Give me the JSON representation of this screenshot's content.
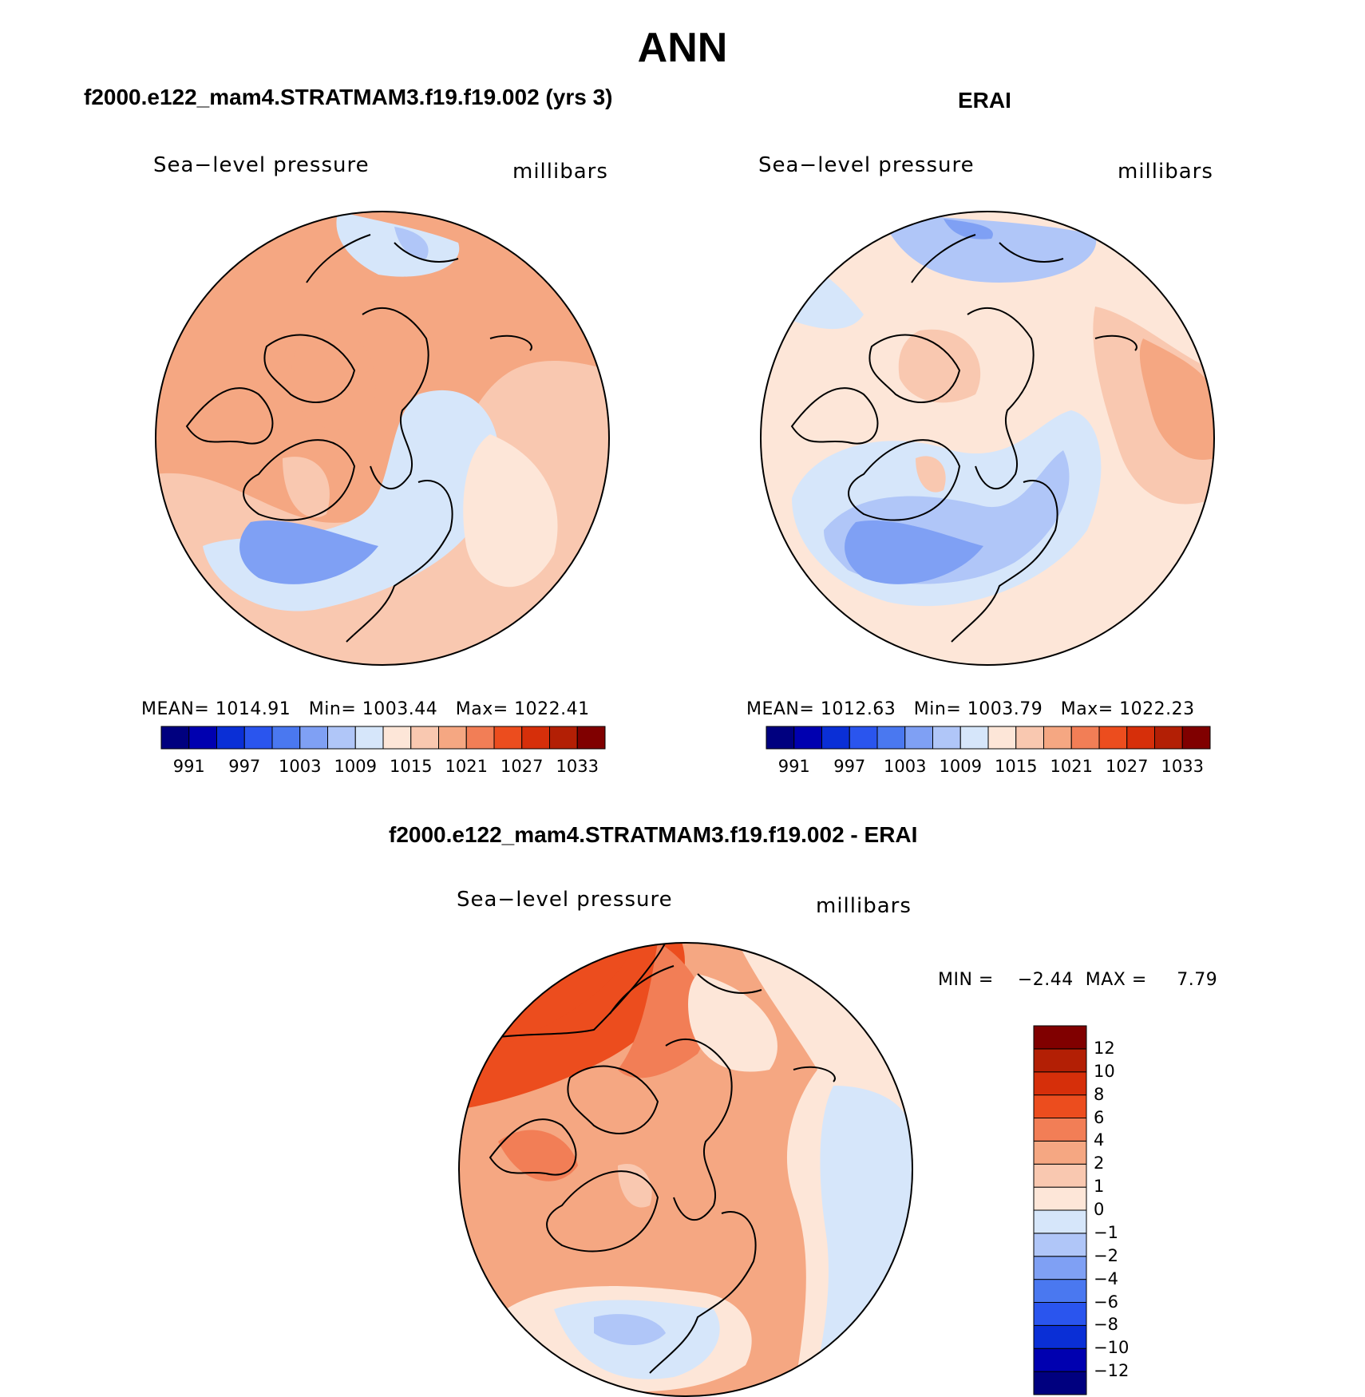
{
  "season": "ANN",
  "panels": [
    {
      "id": "model",
      "heading": "f2000.e122_mam4.STRATMAM3.f19.f19.002 (yrs 3)",
      "variable": "Sea−level pressure",
      "units": "millibars",
      "stats": {
        "mean_label": "MEAN=",
        "mean": "1014.91",
        "min_label": "Min=",
        "min": "1003.44",
        "max_label": "Max=",
        "max": "1022.41"
      }
    },
    {
      "id": "obs",
      "heading": "ERAI",
      "variable": "Sea−level pressure",
      "units": "millibars",
      "stats": {
        "mean_label": "MEAN=",
        "mean": "1012.63",
        "min_label": "Min=",
        "min": "1003.79",
        "max_label": "Max=",
        "max": "1022.23"
      }
    },
    {
      "id": "diff",
      "heading": "f2000.e122_mam4.STRATMAM3.f19.f19.002 - ERAI",
      "variable": "Sea−level pressure",
      "units": "millibars",
      "stats": {
        "min_label": "MIN =",
        "min": "−2.44",
        "max_label": "MAX =",
        "max": "7.79"
      }
    }
  ],
  "abs_colorbar": {
    "colors": [
      "#00007f",
      "#0000b0",
      "#0a2fd6",
      "#2a55ee",
      "#4a78f0",
      "#7fa0f4",
      "#b0c6f8",
      "#d6e6fa",
      "#fde6d8",
      "#f9c8b0",
      "#f5a782",
      "#f27e56",
      "#ec4d1e",
      "#d62f0a",
      "#b31f05",
      "#800000"
    ],
    "labels": [
      "991",
      "997",
      "1003",
      "1009",
      "1015",
      "1021",
      "1027",
      "1033"
    ]
  },
  "diff_colorbar": {
    "colors": [
      "#00007f",
      "#0000b0",
      "#0a2fd6",
      "#2a55ee",
      "#4a78f0",
      "#7fa0f4",
      "#b0c6f8",
      "#d6e6fa",
      "#fde6d8",
      "#f9c8b0",
      "#f5a782",
      "#f27e56",
      "#ec4d1e",
      "#d62f0a",
      "#b31f05",
      "#800000"
    ],
    "labels": [
      "12",
      "10",
      "8",
      "6",
      "4",
      "2",
      "1",
      "0",
      "−1",
      "−2",
      "−4",
      "−6",
      "−8",
      "−10",
      "−12"
    ]
  }
}
